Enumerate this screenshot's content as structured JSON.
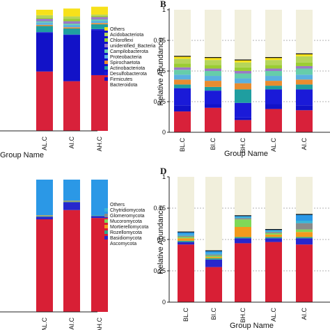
{
  "panels": [
    {
      "panel_label": "",
      "ylabel": "",
      "xlabel": "Group Name",
      "categories": [
        "",
        "AL.C",
        "AI.C",
        "AH.C"
      ],
      "legend": [
        "Others",
        "Acidobacteriota",
        "Chloroflexi",
        "unidentified_Bacteria",
        "Campilobacterota",
        "Proteobacteria",
        "Spirochaetota",
        "Actinobacteriota",
        "Desulfobacterota",
        "Firmicutes",
        "Bacteroidota"
      ]
    },
    {
      "panel_label": "B",
      "ylabel": "Relative Abundance",
      "xlabel": "Group Name",
      "categories": [
        "BL.C",
        "BI.C",
        "BH.C",
        "AL.C",
        "AI.C"
      ],
      "yticks": [
        "0",
        "0.25",
        "0.5",
        "0.75",
        "1"
      ],
      "legend": []
    },
    {
      "panel_label": "",
      "ylabel": "",
      "xlabel": "",
      "categories": [
        "",
        "AL.C",
        "AI.C",
        "AH.C"
      ],
      "legend": [
        "Others",
        "Chytridiomycota",
        "Glomeromycota",
        "Mucoromycota",
        "Mortierellomycota",
        "Rozellomycota",
        "Basidiomycota",
        "Ascomycota"
      ]
    },
    {
      "panel_label": "D",
      "ylabel": "Relative Abundance",
      "xlabel": "Group Name",
      "categories": [
        "BL.C",
        "BI.C",
        "BH.C",
        "AL.C",
        "AI.C"
      ],
      "yticks": [
        "0",
        "0.25",
        "0.5",
        "0.75",
        "1"
      ],
      "legend": []
    }
  ],
  "colors": {
    "bacteria": [
      "#f7e11a",
      "#b5d55a",
      "#9acd32",
      "#9b79c7",
      "#66cdaa",
      "#5bb0e0",
      "#e88c30",
      "#1f9ea0",
      "#1a1ad8",
      "#1212c8",
      "#d8213a"
    ],
    "fungi": [
      "#2b98e6",
      "#3ab5d8",
      "#8a8a8a",
      "#7ed957",
      "#f29a1c",
      "#2fa98a",
      "#2727cc",
      "#d81f35"
    ],
    "unknown": "#f1efdc"
  },
  "chart_data": [
    {
      "type": "bar",
      "stacked": true,
      "panel": "A",
      "categories": [
        "",
        "AL.C",
        "AI.C",
        "AH.C"
      ],
      "series": [
        {
          "name": "Bacteroidota",
          "values": [
            0.31,
            0.49,
            0.41,
            0.46
          ]
        },
        {
          "name": "Firmicutes",
          "values": [
            0.41,
            0.32,
            0.38,
            0.37
          ]
        },
        {
          "name": "Desulfobacterota",
          "values": [
            0.03,
            0.005,
            0.005,
            0.01
          ]
        },
        {
          "name": "Actinobacteriota",
          "values": [
            0.06,
            0.05,
            0.05,
            0.04
          ]
        },
        {
          "name": "Spirochaetota",
          "values": [
            0.01,
            0.01,
            0.01,
            0.01
          ]
        },
        {
          "name": "Proteobacteria",
          "values": [
            0.03,
            0.02,
            0.02,
            0.02
          ]
        },
        {
          "name": "Campilobacterota",
          "values": [
            0.02,
            0.01,
            0.01,
            0.01
          ]
        },
        {
          "name": "unidentified_Bacteria",
          "values": [
            0.02,
            0.02,
            0.02,
            0.02
          ]
        },
        {
          "name": "Chloroflexi",
          "values": [
            0.02,
            0.01,
            0.02,
            0.01
          ]
        },
        {
          "name": "Acidobacteriota",
          "values": [
            0.02,
            0.02,
            0.02,
            0.01
          ]
        },
        {
          "name": "Others",
          "values": [
            0.07,
            0.045,
            0.065,
            0.065
          ]
        }
      ],
      "ylim": [
        0,
        1
      ]
    },
    {
      "type": "bar",
      "stacked": true,
      "panel": "B",
      "categories": [
        "BL.C",
        "BI.C",
        "BH.C",
        "AL.C",
        "AI.C"
      ],
      "ylabel": "Relative Abundance",
      "xlabel": "Group Name",
      "series": [
        {
          "name": "Bacteroidota",
          "values": [
            0.17,
            0.2,
            0.1,
            0.19,
            0.18
          ]
        },
        {
          "name": "Firmicutes",
          "values": [
            0.05,
            0.03,
            0.02,
            0.04,
            0.04
          ]
        },
        {
          "name": "Desulfobacterota",
          "values": [
            0.14,
            0.11,
            0.12,
            0.12,
            0.13
          ]
        },
        {
          "name": "Actinobacteriota",
          "values": [
            0.03,
            0.03,
            0.11,
            0.03,
            0.04
          ]
        },
        {
          "name": "Spirochaetota",
          "values": [
            0.04,
            0.05,
            0.05,
            0.04,
            0.04
          ]
        },
        {
          "name": "Proteobacteria",
          "values": [
            0.04,
            0.04,
            0.04,
            0.04,
            0.04
          ]
        },
        {
          "name": "Campilobacterota",
          "values": [
            0.04,
            0.04,
            0.04,
            0.04,
            0.05
          ]
        },
        {
          "name": "unidentified_Bacteria",
          "values": [
            0.02,
            0.02,
            0.02,
            0.02,
            0.02
          ]
        },
        {
          "name": "Chloroflexi",
          "values": [
            0.03,
            0.03,
            0.03,
            0.03,
            0.03
          ]
        },
        {
          "name": "Acidobacteriota",
          "values": [
            0.04,
            0.04,
            0.04,
            0.04,
            0.05
          ]
        },
        {
          "name": "Others",
          "values": [
            0.02,
            0.02,
            0.02,
            0.02,
            0.02
          ]
        }
      ],
      "remainder_color": "unknown",
      "ylim": [
        0,
        1
      ],
      "yticks": [
        0,
        0.25,
        0.5,
        0.75,
        1
      ],
      "grid": "dashed horizontal"
    },
    {
      "type": "bar",
      "stacked": true,
      "panel": "C",
      "categories": [
        "",
        "AL.C",
        "AI.C",
        "AH.C"
      ],
      "series": [
        {
          "name": "Ascomycota",
          "values": [
            0.8,
            0.7,
            0.77,
            0.71
          ]
        },
        {
          "name": "Basidiomycota",
          "values": [
            0.005,
            0.02,
            0.06,
            0.015
          ]
        },
        {
          "name": "Rozellomycota",
          "values": [
            0.0,
            0.005,
            0.005,
            0.005
          ]
        },
        {
          "name": "Mortierellomycota",
          "values": [
            0.0,
            0.005,
            0.005,
            0.0
          ]
        },
        {
          "name": "Mucoromycota",
          "values": [
            0.0,
            0.0,
            0.0,
            0.0
          ]
        },
        {
          "name": "Glomeromycota",
          "values": [
            0.0,
            0.0,
            0.0,
            0.0
          ]
        },
        {
          "name": "Chytridiomycota",
          "values": [
            0.0,
            0.0,
            0.0,
            0.0
          ]
        },
        {
          "name": "Others",
          "values": [
            0.195,
            0.27,
            0.16,
            0.27
          ]
        }
      ],
      "ylim": [
        0,
        1
      ]
    },
    {
      "type": "bar",
      "stacked": true,
      "panel": "D",
      "categories": [
        "BL.C",
        "BI.C",
        "BH.C",
        "AL.C",
        "AI.C"
      ],
      "ylabel": "Relative Abundance",
      "xlabel": "Group Name",
      "series": [
        {
          "name": "Ascomycota",
          "values": [
            0.46,
            0.28,
            0.47,
            0.48,
            0.46
          ]
        },
        {
          "name": "Basidiomycota",
          "values": [
            0.02,
            0.06,
            0.04,
            0.03,
            0.05
          ]
        },
        {
          "name": "Rozellomycota",
          "values": [
            0.01,
            0.01,
            0.01,
            0.01,
            0.01
          ]
        },
        {
          "name": "Mortierellomycota",
          "values": [
            0.02,
            0.01,
            0.08,
            0.02,
            0.04
          ]
        },
        {
          "name": "Mucoromycota",
          "values": [
            0.01,
            0.01,
            0.06,
            0.01,
            0.02
          ]
        },
        {
          "name": "Glomeromycota",
          "values": [
            0.01,
            0.01,
            0.01,
            0.01,
            0.05
          ]
        },
        {
          "name": "Chytridiomycota",
          "values": [
            0.01,
            0.01,
            0.01,
            0.01,
            0.02
          ]
        },
        {
          "name": "Others",
          "values": [
            0.02,
            0.02,
            0.01,
            0.01,
            0.05
          ]
        }
      ],
      "remainder_color": "unknown",
      "ylim": [
        0,
        1
      ],
      "yticks": [
        0,
        0.25,
        0.5,
        0.75,
        1
      ],
      "grid": "dashed horizontal"
    }
  ]
}
